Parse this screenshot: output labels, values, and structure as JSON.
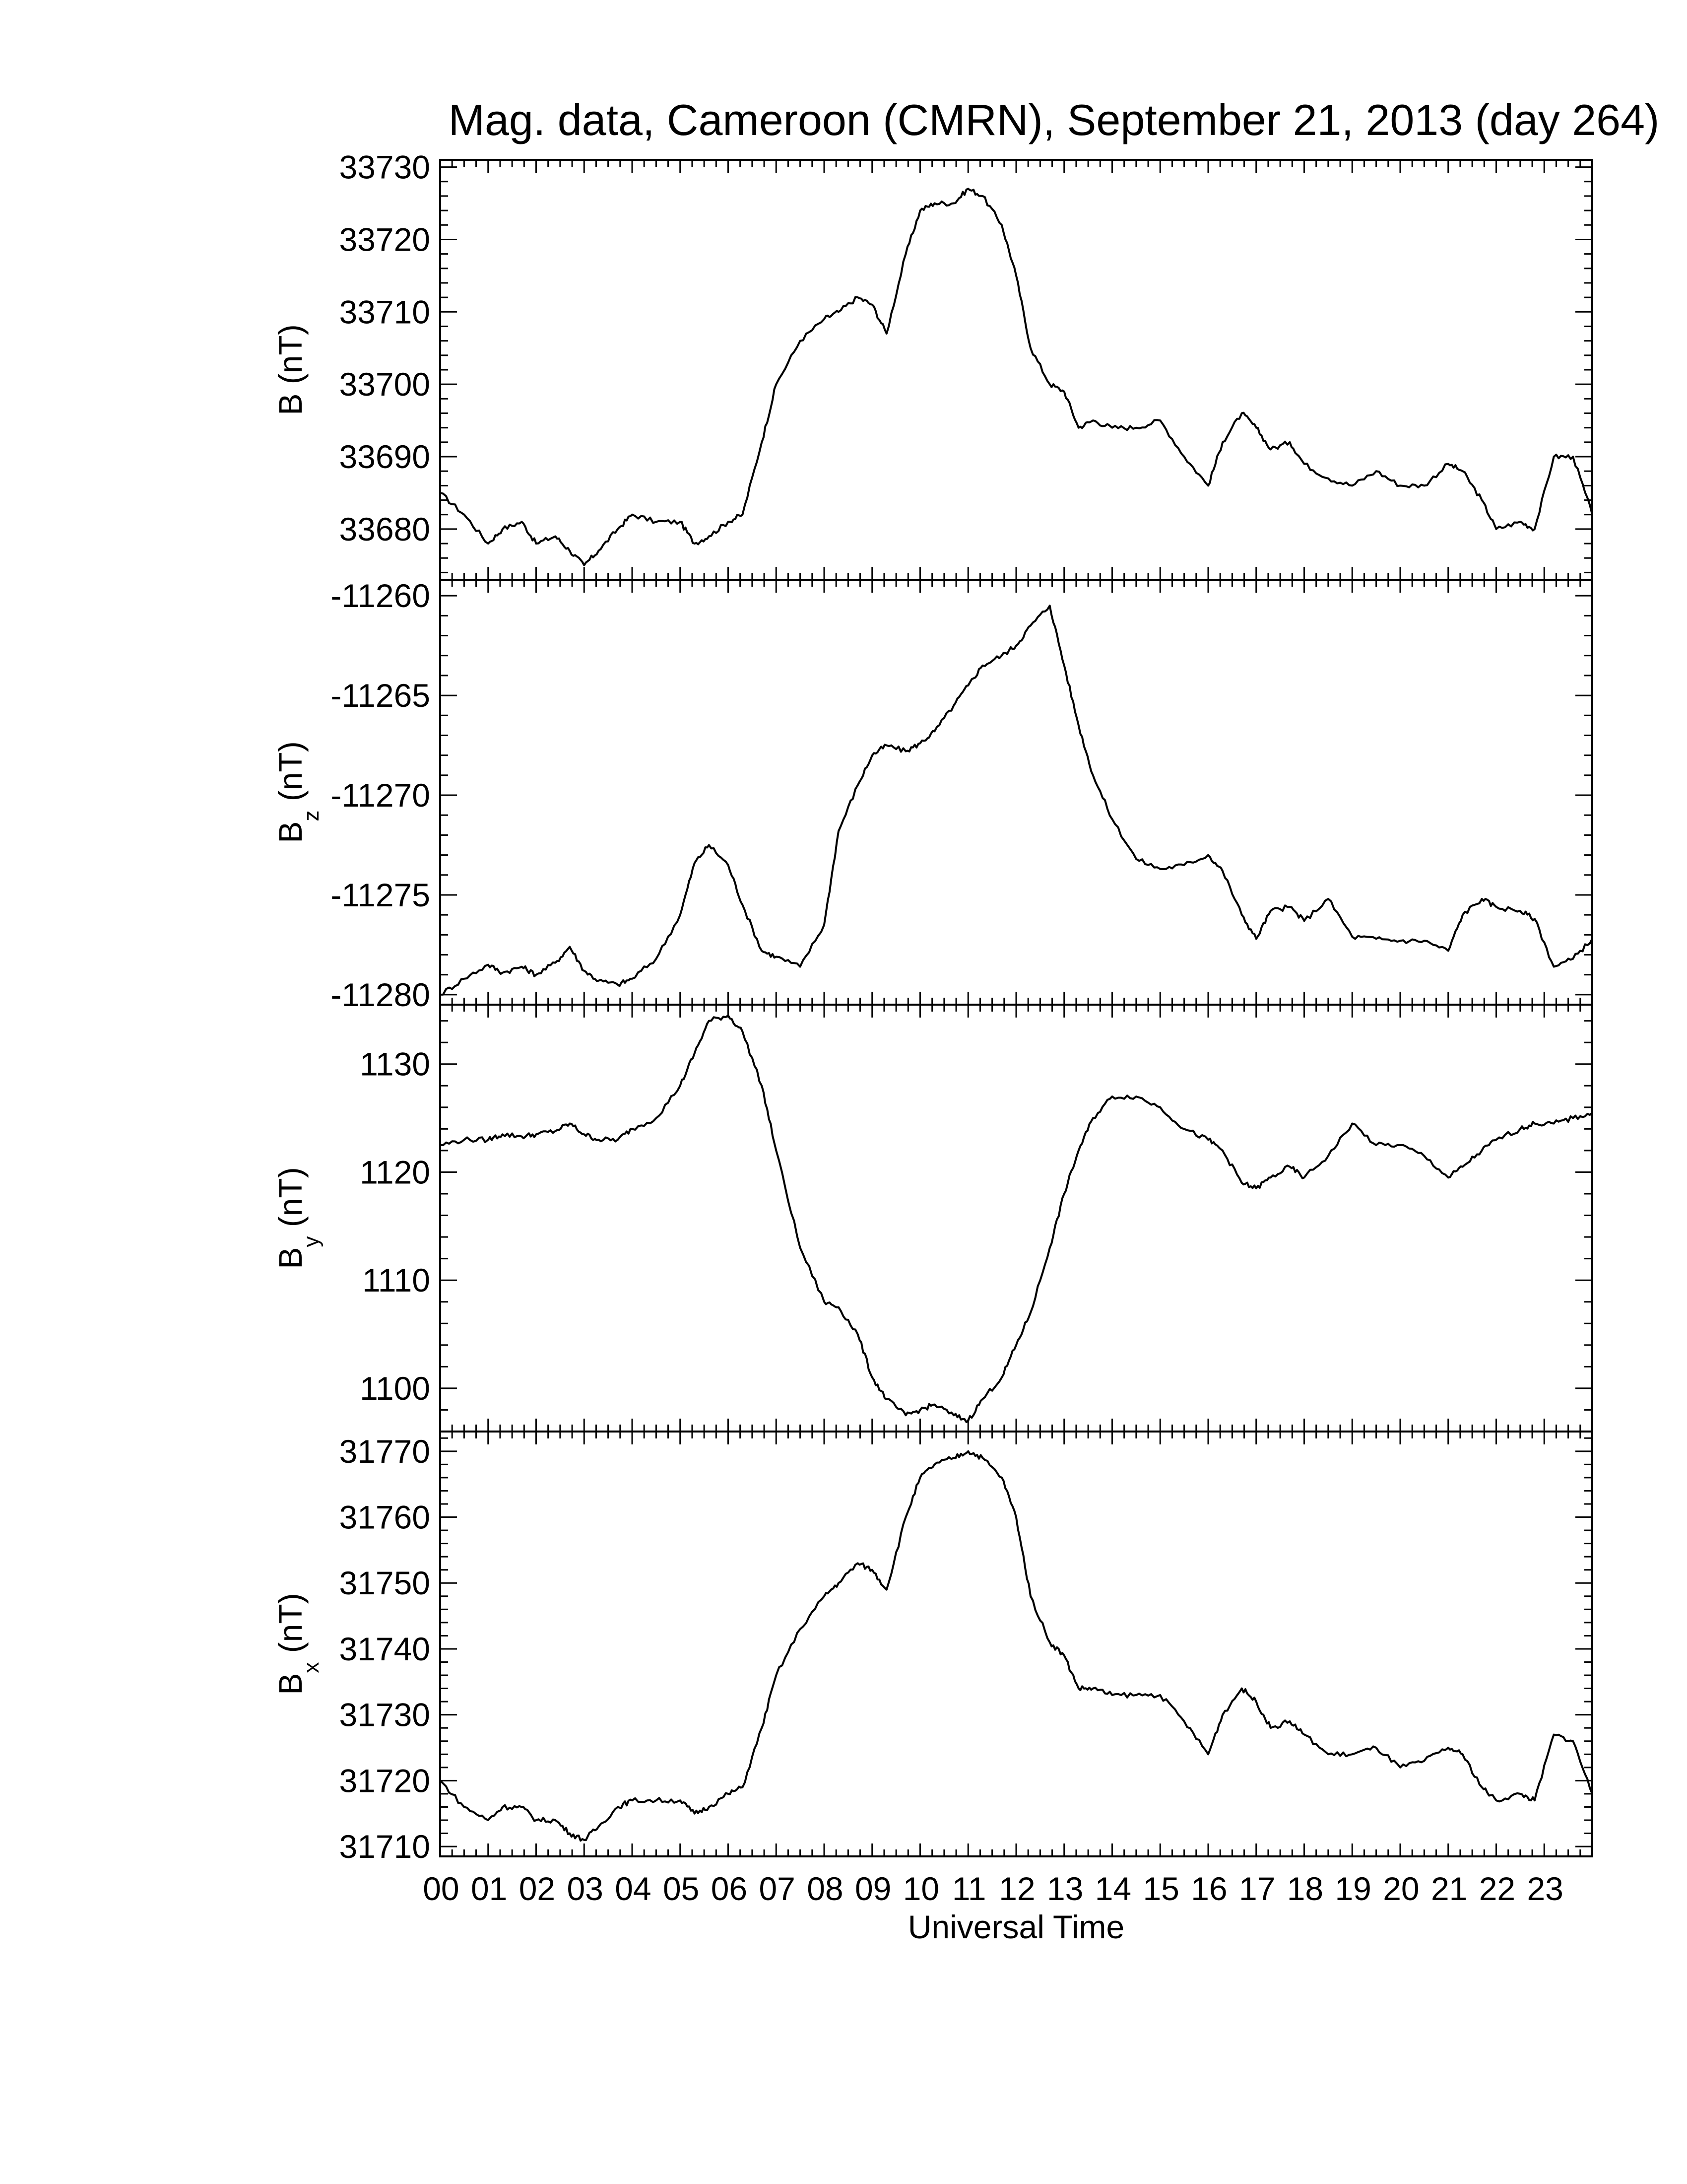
{
  "title": "Mag. data, Cameroon (CMRN), September 21, 2013 (day 264)",
  "xlabel": "Universal Time",
  "x_tick_labels": [
    "00",
    "01",
    "02",
    "03",
    "04",
    "05",
    "06",
    "07",
    "08",
    "09",
    "10",
    "11",
    "12",
    "13",
    "14",
    "15",
    "16",
    "17",
    "18",
    "19",
    "20",
    "21",
    "22",
    "23"
  ],
  "chart_data": [
    {
      "type": "line",
      "ylabel": "B (nT)",
      "ylabel_main": "B",
      "ylabel_sub": "",
      "ylabel_unit": " (nT)",
      "ylim": [
        33673,
        33731
      ],
      "yticks": [
        33680,
        33690,
        33700,
        33710,
        33720,
        33730
      ],
      "xlim": [
        0,
        24
      ],
      "x": [
        0,
        0.5,
        1,
        1.3,
        1.7,
        2,
        2.4,
        2.7,
        3,
        3.3,
        3.7,
        4,
        4.5,
        5,
        5.3,
        5.6,
        6,
        6.3,
        6.7,
        7,
        7.5,
        8,
        8.3,
        8.7,
        9,
        9.3,
        9.7,
        10,
        10.3,
        10.7,
        11,
        11.3,
        11.7,
        12,
        12.3,
        12.7,
        13,
        13.3,
        13.6,
        14,
        14.5,
        15,
        15.5,
        16,
        16.3,
        16.7,
        17,
        17.3,
        17.7,
        18,
        18.5,
        19,
        19.5,
        20,
        20.5,
        21,
        21.3,
        21.7,
        22,
        22.5,
        22.8,
        23.2,
        23.6,
        24
      ],
      "y": [
        33685,
        33682,
        33678,
        33680,
        33681,
        33678,
        33679,
        33677,
        33675,
        33677,
        33680,
        33682,
        33681,
        33681,
        33678,
        33679,
        33681,
        33682,
        33692,
        33700,
        33706,
        33709,
        33710,
        33712,
        33711,
        33707,
        33718,
        33724,
        33725,
        33725,
        33727,
        33726,
        33722,
        33715,
        33705,
        33700,
        33699,
        33694,
        33695,
        33694,
        33694,
        33695,
        33690,
        33686,
        33692,
        33696,
        33694,
        33691,
        33692,
        33689,
        33687,
        33686,
        33688,
        33686,
        33686,
        33689,
        33688,
        33684,
        33680,
        33681,
        33680,
        33690,
        33690,
        33682
      ]
    },
    {
      "type": "line",
      "ylabel": "Bz (nT)",
      "ylabel_main": "B",
      "ylabel_sub": "z",
      "ylabel_unit": " (nT)",
      "ylim": [
        -11280.5,
        -11259.2
      ],
      "yticks": [
        -11280,
        -11275,
        -11270,
        -11265,
        -11260
      ],
      "xlim": [
        0,
        24
      ],
      "x": [
        0,
        0.5,
        1,
        1.3,
        1.7,
        2,
        2.4,
        2.7,
        3,
        3.3,
        3.7,
        4,
        4.5,
        5,
        5.3,
        5.6,
        6,
        6.3,
        6.7,
        7,
        7.5,
        8,
        8.3,
        8.7,
        9,
        9.3,
        9.7,
        10,
        10.3,
        10.7,
        11,
        11.3,
        11.7,
        12,
        12.3,
        12.7,
        13,
        13.3,
        13.6,
        14,
        14.5,
        15,
        15.5,
        16,
        16.3,
        16.7,
        17,
        17.3,
        17.7,
        18,
        18.5,
        19,
        19.5,
        20,
        20.5,
        21,
        21.3,
        21.7,
        22,
        22.5,
        22.8,
        23.2,
        23.6,
        24
      ],
      "y": [
        -11280,
        -11279.2,
        -11278.5,
        -11278.9,
        -11278.6,
        -11279,
        -11278.4,
        -11277.6,
        -11278.8,
        -11279.3,
        -11279.5,
        -11279.2,
        -11278.2,
        -11276,
        -11273.4,
        -11272.5,
        -11273.5,
        -11275.5,
        -11277.8,
        -11278.1,
        -11278.6,
        -11276.5,
        -11271.8,
        -11269.5,
        -11268,
        -11267.5,
        -11267.8,
        -11267.4,
        -11266.8,
        -11265.5,
        -11264.5,
        -11263.5,
        -11263,
        -11262.5,
        -11261.5,
        -11260.5,
        -11263.5,
        -11266.5,
        -11269,
        -11271.2,
        -11273.2,
        -11273.7,
        -11273.5,
        -11273,
        -11273.8,
        -11276,
        -11277.2,
        -11275.8,
        -11275.6,
        -11276.3,
        -11275.2,
        -11277.1,
        -11277.2,
        -11277.3,
        -11277.3,
        -11277.8,
        -11276,
        -11275.2,
        -11275.6,
        -11275.8,
        -11276.2,
        -11278.6,
        -11278.2,
        -11277.2
      ]
    },
    {
      "type": "line",
      "ylabel": "By (nT)",
      "ylabel_main": "B",
      "ylabel_sub": "y",
      "ylabel_unit": " (nT)",
      "ylim": [
        1096,
        1135.5
      ],
      "yticks": [
        1100,
        1110,
        1120,
        1130
      ],
      "xlim": [
        0,
        24
      ],
      "x": [
        0,
        0.5,
        1,
        1.3,
        1.7,
        2,
        2.4,
        2.7,
        3,
        3.3,
        3.7,
        4,
        4.5,
        5,
        5.3,
        5.6,
        6,
        6.3,
        6.7,
        7,
        7.5,
        8,
        8.3,
        8.7,
        9,
        9.3,
        9.7,
        10,
        10.3,
        10.7,
        11,
        11.3,
        11.7,
        12,
        12.3,
        12.7,
        13,
        13.3,
        13.6,
        14,
        14.5,
        15,
        15.5,
        16,
        16.3,
        16.7,
        17,
        17.3,
        17.7,
        18,
        18.5,
        19,
        19.5,
        20,
        20.5,
        21,
        21.3,
        21.7,
        22,
        22.5,
        22.8,
        23.2,
        23.6,
        24
      ],
      "y": [
        1122.5,
        1123,
        1123,
        1123.5,
        1123.3,
        1123.5,
        1123.8,
        1124.5,
        1123.5,
        1123,
        1123,
        1124,
        1125,
        1128,
        1131,
        1134,
        1134.5,
        1133,
        1128,
        1122,
        1113,
        1108,
        1107.5,
        1105,
        1101,
        1099,
        1097.5,
        1098,
        1098.5,
        1097.5,
        1097,
        1099,
        1101,
        1104,
        1107,
        1113,
        1118,
        1122,
        1125,
        1127,
        1127,
        1126,
        1124,
        1123,
        1122,
        1119,
        1118.5,
        1119.5,
        1120.5,
        1119.5,
        1121.5,
        1124.5,
        1122.5,
        1122.5,
        1121.5,
        1119.5,
        1120.5,
        1122,
        1123,
        1124,
        1124.5,
        1124.5,
        1125,
        1125.5
      ]
    },
    {
      "type": "line",
      "ylabel": "Bx (nT)",
      "ylabel_main": "B",
      "ylabel_sub": "x",
      "ylabel_unit": " (nT)",
      "ylim": [
        31708.5,
        31773
      ],
      "yticks": [
        31710,
        31720,
        31730,
        31740,
        31750,
        31760,
        31770
      ],
      "xlim": [
        0,
        24
      ],
      "x": [
        0,
        0.5,
        1,
        1.3,
        1.7,
        2,
        2.4,
        2.7,
        3,
        3.3,
        3.7,
        4,
        4.5,
        5,
        5.3,
        5.6,
        6,
        6.3,
        6.7,
        7,
        7.5,
        8,
        8.3,
        8.7,
        9,
        9.3,
        9.7,
        10,
        10.3,
        10.7,
        11,
        11.3,
        11.7,
        12,
        12.3,
        12.7,
        13,
        13.3,
        13.6,
        14,
        14.5,
        15,
        15.5,
        16,
        16.3,
        16.7,
        17,
        17.3,
        17.7,
        18,
        18.5,
        19,
        19.5,
        20,
        20.5,
        21,
        21.3,
        21.7,
        22,
        22.5,
        22.8,
        23.2,
        23.6,
        24
      ],
      "y": [
        31720,
        31716,
        31714,
        31716,
        31716,
        31714,
        31714,
        31712,
        31711,
        31713,
        31716,
        31717,
        31717,
        31717,
        31715,
        31716,
        31718,
        31719,
        31728,
        31736,
        31743,
        31748,
        31750,
        31753,
        31752,
        31749,
        31760,
        31766,
        31768,
        31769,
        31770,
        31769,
        31766,
        31760,
        31748,
        31741,
        31739,
        31734,
        31734,
        31733,
        31733,
        31733,
        31729,
        31724,
        31730,
        31734,
        31732,
        31728,
        31729,
        31727,
        31724,
        31724,
        31725,
        31722,
        31723,
        31725,
        31724,
        31719,
        31717,
        31718,
        31717,
        31727,
        31726,
        31718
      ]
    }
  ]
}
